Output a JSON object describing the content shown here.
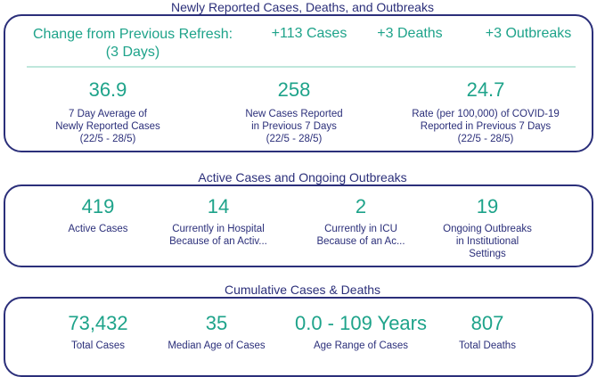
{
  "section1": {
    "title": "Newly Reported Cases, Deaths, and Outbreaks",
    "change_label_line1": "Change from Previous Refresh:",
    "change_label_line2": "(3 Days)",
    "cases_delta": "+113 Cases",
    "deaths_delta": "+3 Deaths",
    "outbreaks_delta": "+3 Outbreaks",
    "stats": [
      {
        "value": "36.9",
        "line1": "7 Day Average of",
        "line2": "Newly Reported Cases",
        "line3": "(22/5 - 28/5)"
      },
      {
        "value": "258",
        "line1": "New Cases Reported",
        "line2": "in Previous 7 Days",
        "line3": "(22/5 - 28/5)"
      },
      {
        "value": "24.7",
        "line1": "Rate (per 100,000) of COVID-19",
        "line2": "Reported in Previous 7 Days",
        "line3": "(22/5 - 28/5)"
      }
    ]
  },
  "section2": {
    "title": "Active Cases and Ongoing Outbreaks",
    "stats": [
      {
        "value": "419",
        "line1": "Active Cases",
        "line2": "",
        "line3": ""
      },
      {
        "value": "14",
        "line1": "Currently in Hospital",
        "line2": "Because of an Activ...",
        "line3": ""
      },
      {
        "value": "2",
        "line1": "Currently in ICU",
        "line2": "Because of an Ac...",
        "line3": ""
      },
      {
        "value": "19",
        "line1": "Ongoing Outbreaks",
        "line2": "in Institutional",
        "line3": "Settings"
      }
    ]
  },
  "section3": {
    "title": "Cumulative Cases & Deaths",
    "stats": [
      {
        "value": "73,432",
        "line1": "Total Cases"
      },
      {
        "value": "35",
        "line1": "Median Age of Cases"
      },
      {
        "value": "0.0 - 109 Years",
        "line1": "Age Range of Cases"
      },
      {
        "value": "807",
        "line1": "Total Deaths"
      }
    ]
  },
  "colors": {
    "navy": "#2b2f7a",
    "green": "#1ea38a",
    "divider": "#bfe7dc"
  }
}
